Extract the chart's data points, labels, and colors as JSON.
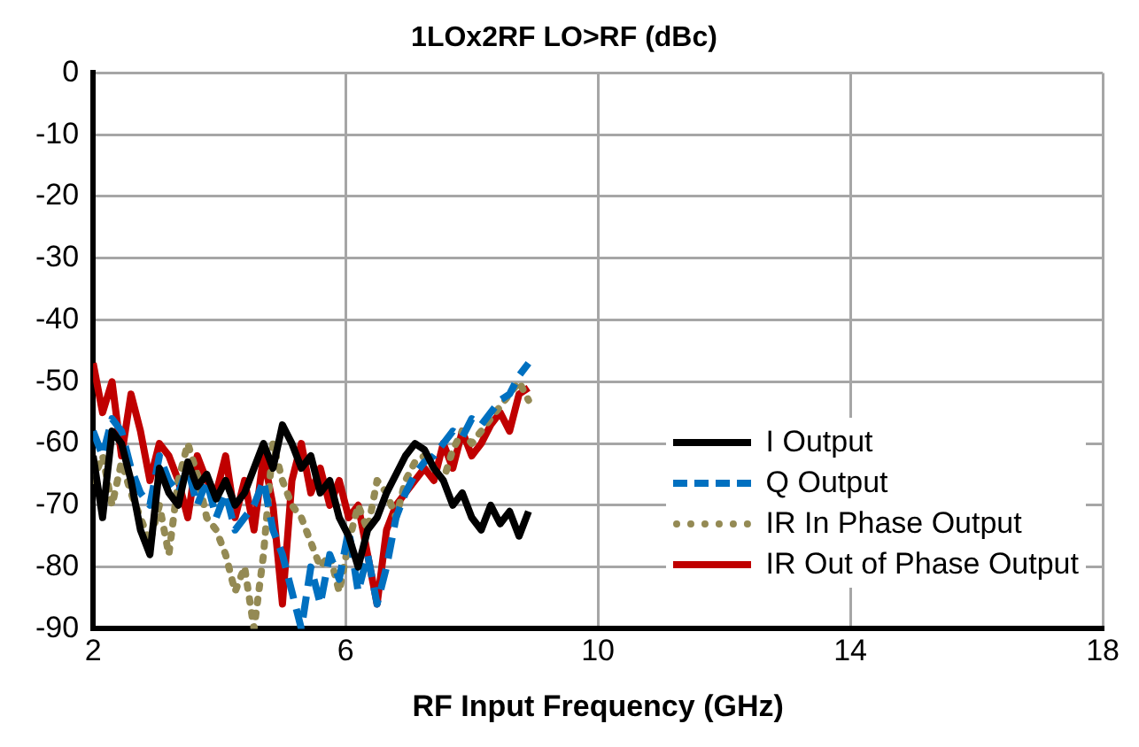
{
  "chart_data": {
    "type": "line",
    "title": "1LOx2RF LO>RF (dBc)",
    "xlabel": "RF Input Frequency (GHz)",
    "x": [
      2.0,
      2.15,
      2.3,
      2.45,
      2.6,
      2.75,
      2.9,
      3.05,
      3.2,
      3.35,
      3.5,
      3.65,
      3.8,
      3.95,
      4.1,
      4.25,
      4.4,
      4.55,
      4.7,
      4.85,
      5.0,
      5.15,
      5.3,
      5.45,
      5.6,
      5.75,
      5.9,
      6.05,
      6.2,
      6.35,
      6.5,
      6.65,
      6.8,
      6.95,
      7.1,
      7.25,
      7.4,
      7.55,
      7.7,
      7.85,
      8.0,
      8.15,
      8.3,
      8.45,
      8.6,
      8.75,
      8.9
    ],
    "series": [
      {
        "name": "I Output",
        "color": "#000000",
        "line_style": "solid",
        "values": [
          -62,
          -72,
          -58,
          -60,
          -66,
          -74,
          -78,
          -64,
          -68,
          -70,
          -63,
          -67,
          -65,
          -69,
          -66,
          -70,
          -68,
          -64,
          -60,
          -64,
          -57,
          -60,
          -64,
          -62,
          -68,
          -66,
          -72,
          -75,
          -80,
          -74,
          -72,
          -68,
          -65,
          -62,
          -60,
          -61,
          -64,
          -66,
          -70,
          -68,
          -72,
          -74,
          -70,
          -73,
          -71,
          -75,
          -71
        ]
      },
      {
        "name": "Q Output",
        "color": "#0070c0",
        "line_style": "dashed",
        "values": [
          -58,
          -62,
          -56,
          -58,
          -64,
          -68,
          -70,
          -62,
          -66,
          -68,
          -64,
          -70,
          -66,
          -72,
          -68,
          -74,
          -72,
          -70,
          -66,
          -74,
          -78,
          -84,
          -90,
          -80,
          -86,
          -78,
          -82,
          -74,
          -84,
          -78,
          -86,
          -80,
          -72,
          -68,
          -65,
          -63,
          -62,
          -60,
          -58,
          -59,
          -56,
          -57,
          -55,
          -53,
          -52,
          -49,
          -47
        ]
      },
      {
        "name": "IR In Phase Output",
        "color": "#948a54",
        "line_style": "dotted",
        "values": [
          -66,
          -62,
          -70,
          -63,
          -68,
          -72,
          -76,
          -70,
          -78,
          -66,
          -60,
          -65,
          -72,
          -74,
          -78,
          -84,
          -80,
          -90,
          -78,
          -60,
          -66,
          -70,
          -72,
          -76,
          -80,
          -78,
          -84,
          -76,
          -70,
          -74,
          -66,
          -68,
          -72,
          -66,
          -63,
          -62,
          -64,
          -66,
          -61,
          -58,
          -60,
          -58,
          -56,
          -54,
          -52,
          -50,
          -53
        ]
      },
      {
        "name": "IR Out of Phase Output",
        "color": "#c00000",
        "line_style": "solid",
        "values": [
          -47,
          -55,
          -50,
          -62,
          -52,
          -58,
          -66,
          -60,
          -62,
          -66,
          -72,
          -62,
          -66,
          -68,
          -62,
          -72,
          -66,
          -74,
          -62,
          -70,
          -86,
          -66,
          -60,
          -68,
          -64,
          -70,
          -66,
          -72,
          -70,
          -78,
          -86,
          -74,
          -70,
          -68,
          -66,
          -64,
          -66,
          -60,
          -64,
          -58,
          -62,
          -60,
          -57,
          -55,
          -58,
          -52,
          -51
        ]
      }
    ],
    "xlim": [
      2,
      18
    ],
    "xticks": [
      2,
      6,
      10,
      14,
      18
    ],
    "ylim": [
      -90,
      0
    ],
    "yticks": [
      -90,
      -80,
      -70,
      -60,
      -50,
      -40,
      -30,
      -20,
      -10,
      0
    ],
    "grid": true,
    "legend": "right",
    "marker": "none"
  }
}
